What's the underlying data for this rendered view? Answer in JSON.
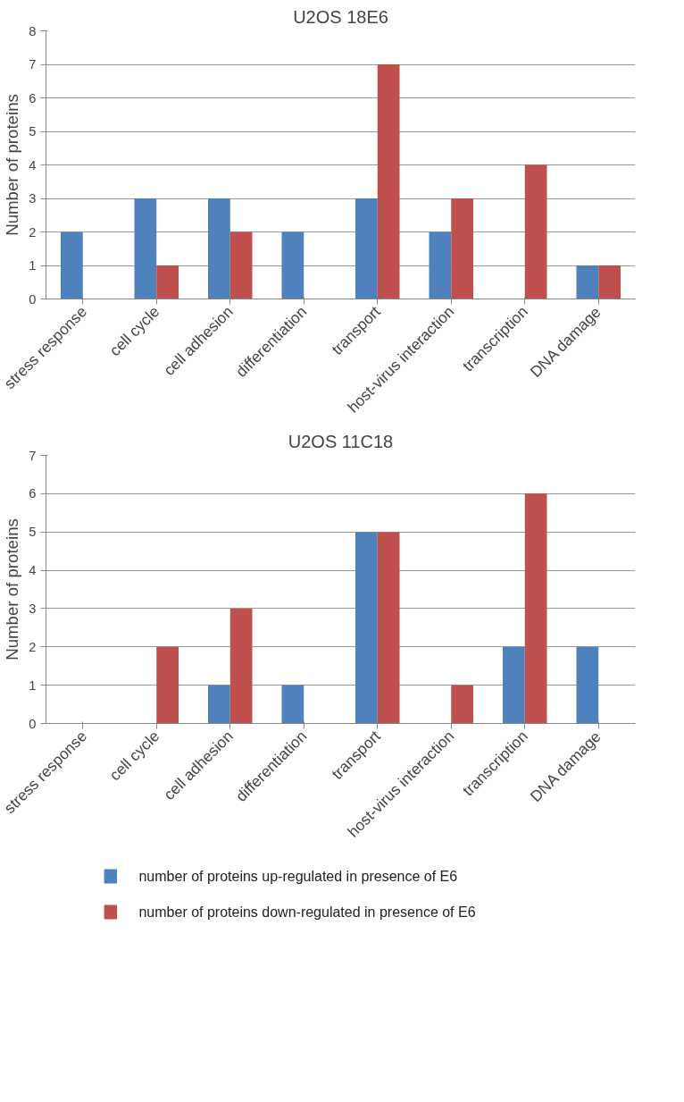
{
  "chart_data": [
    {
      "type": "bar",
      "title": "U2OS 18E6",
      "ylabel": "Number of proteins",
      "categories": [
        "stress response",
        "cell cycle",
        "cell adhesion",
        "differentiation",
        "transport",
        "host-virus interaction",
        "transcription",
        "DNA damage"
      ],
      "series": [
        {
          "color": "#4f81bd",
          "values": [
            2,
            3,
            3,
            2,
            3,
            2,
            0,
            1
          ]
        },
        {
          "color": "#c0504d",
          "values": [
            0,
            1,
            2,
            0,
            7,
            3,
            4,
            1
          ]
        }
      ],
      "ylim": [
        0,
        8
      ],
      "yticks": [
        0,
        1,
        2,
        3,
        4,
        5,
        6,
        7,
        8
      ],
      "grid": "y"
    },
    {
      "type": "bar",
      "title": "U2OS 11C18",
      "ylabel": "Number of proteins",
      "categories": [
        "stress response",
        "cell cycle",
        "cell adhesion",
        "differentiation",
        "transport",
        "host-virus interaction",
        "transcription",
        "DNA damage"
      ],
      "series": [
        {
          "name": "number of proteins up-regulated in presence of E6",
          "color": "#4f81bd",
          "values": [
            0,
            0,
            1,
            1,
            5,
            0,
            2,
            2
          ]
        },
        {
          "name": "number of proteins down-regulated in presence of E6",
          "color": "#c0504d",
          "values": [
            0,
            2,
            3,
            0,
            5,
            1,
            6,
            0
          ]
        }
      ],
      "ylim": [
        0,
        7
      ],
      "yticks": [
        0,
        1,
        2,
        3,
        4,
        5,
        6,
        7
      ],
      "grid": "y",
      "legend": "bottom"
    }
  ]
}
